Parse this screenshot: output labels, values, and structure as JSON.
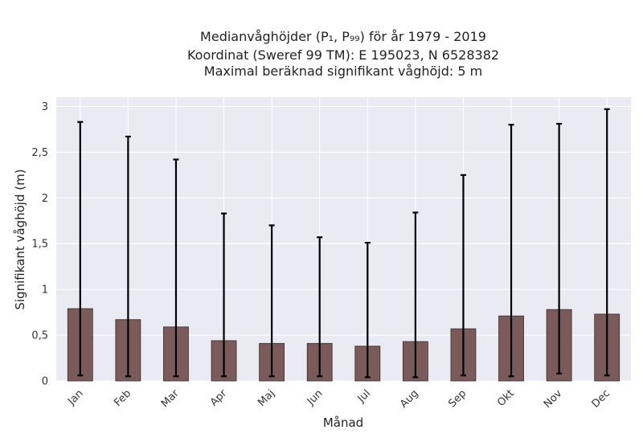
{
  "chart_data": {
    "type": "bar",
    "title_lines": [
      "Medianvåghöjder (P₁, P₉₉) för år 1979 - 2019",
      "Koordinat (Sweref 99 TM): E 195023, N 6528382",
      "Maximal beräknad signifikant våghöjd: 5 m"
    ],
    "xlabel": "Månad",
    "ylabel": "Signifikant våghöjd (m)",
    "categories": [
      "Jan",
      "Feb",
      "Mar",
      "Apr",
      "Maj",
      "Jun",
      "Jul",
      "Aug",
      "Sep",
      "Okt",
      "Nov",
      "Dec"
    ],
    "values": [
      0.79,
      0.67,
      0.59,
      0.44,
      0.41,
      0.41,
      0.38,
      0.43,
      0.57,
      0.71,
      0.78,
      0.73
    ],
    "error_low": [
      0.06,
      0.05,
      0.05,
      0.05,
      0.05,
      0.05,
      0.04,
      0.04,
      0.06,
      0.05,
      0.08,
      0.06
    ],
    "error_high": [
      2.83,
      2.67,
      2.42,
      1.83,
      1.7,
      1.57,
      1.51,
      1.84,
      2.25,
      2.8,
      2.81,
      2.97
    ],
    "ylim": [
      0,
      3.1
    ],
    "yticks": [
      0,
      0.5,
      1,
      1.5,
      2,
      2.5,
      3
    ],
    "ytick_labels": [
      "0",
      "0,5",
      "1",
      "1,5",
      "2",
      "2,5",
      "3"
    ],
    "grid": true,
    "colors": {
      "bar": "#7b5a5b",
      "bar_edge": "#3a2a2a",
      "error": "#000000",
      "plot_bg": "#eaeaf2",
      "grid": "#ffffff"
    }
  }
}
